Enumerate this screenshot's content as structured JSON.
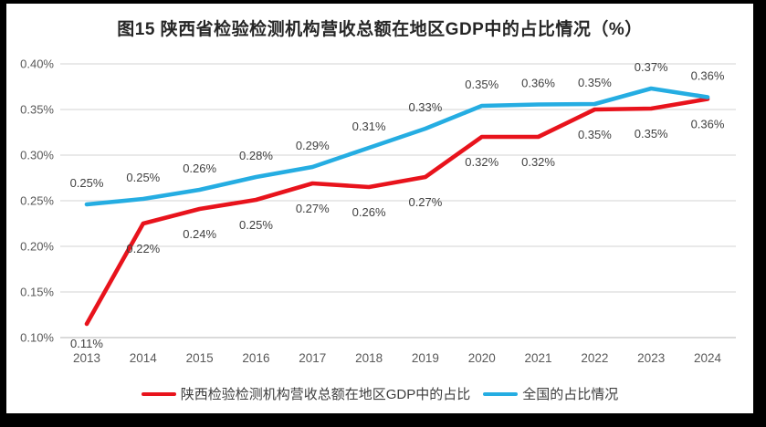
{
  "chart_data": {
    "type": "line",
    "title": "图15 陕西省检验检测机构营收总额在地区GDP中的占比情况（%）",
    "categories": [
      "2013",
      "2014",
      "2015",
      "2016",
      "2017",
      "2018",
      "2019",
      "2020",
      "2021",
      "2022",
      "2023",
      "2024"
    ],
    "xlabel": "",
    "ylabel": "",
    "ylim": [
      0.1,
      0.4
    ],
    "grid": "horizontal",
    "legend_position": "bottom",
    "yticks": [
      {
        "label": "0.40%",
        "value": 0.4
      },
      {
        "label": "0.35%",
        "value": 0.35
      },
      {
        "label": "0.30%",
        "value": 0.3
      },
      {
        "label": "0.25%",
        "value": 0.25
      },
      {
        "label": "0.20%",
        "value": 0.2
      },
      {
        "label": "0.15%",
        "value": 0.15
      },
      {
        "label": "0.10%",
        "value": 0.1
      }
    ],
    "series": [
      {
        "name": "陕西检验检测机构营收总额在地区GDP中的占比",
        "color": "#e8131c",
        "values": [
          0.11,
          0.22,
          0.24,
          0.25,
          0.27,
          0.26,
          0.27,
          0.32,
          0.32,
          0.35,
          0.35,
          0.36
        ],
        "point_labels": [
          "0.11%",
          "0.22%",
          "0.24%",
          "0.25%",
          "0.27%",
          "0.26%",
          "0.27%",
          "0.32%",
          "0.32%",
          "0.35%",
          "0.35%",
          "0.36%"
        ],
        "plot_values": [
          0.115,
          0.225,
          0.241,
          0.251,
          0.269,
          0.265,
          0.276,
          0.32,
          0.32,
          0.35,
          0.351,
          0.3615
        ],
        "label_placement": "below"
      },
      {
        "name": "全国的占比情况",
        "color": "#25ade2",
        "values": [
          0.25,
          0.25,
          0.26,
          0.28,
          0.29,
          0.31,
          0.33,
          0.35,
          0.36,
          0.35,
          0.37,
          0.36
        ],
        "point_labels": [
          "0.25%",
          "0.25%",
          "0.26%",
          "0.28%",
          "0.29%",
          "0.31%",
          "0.33%",
          "0.35%",
          "0.36%",
          "0.35%",
          "0.37%",
          "0.36%"
        ],
        "plot_values": [
          0.246,
          0.252,
          0.262,
          0.276,
          0.287,
          0.308,
          0.329,
          0.354,
          0.3555,
          0.356,
          0.373,
          0.3635
        ],
        "label_placement": "above"
      }
    ]
  }
}
